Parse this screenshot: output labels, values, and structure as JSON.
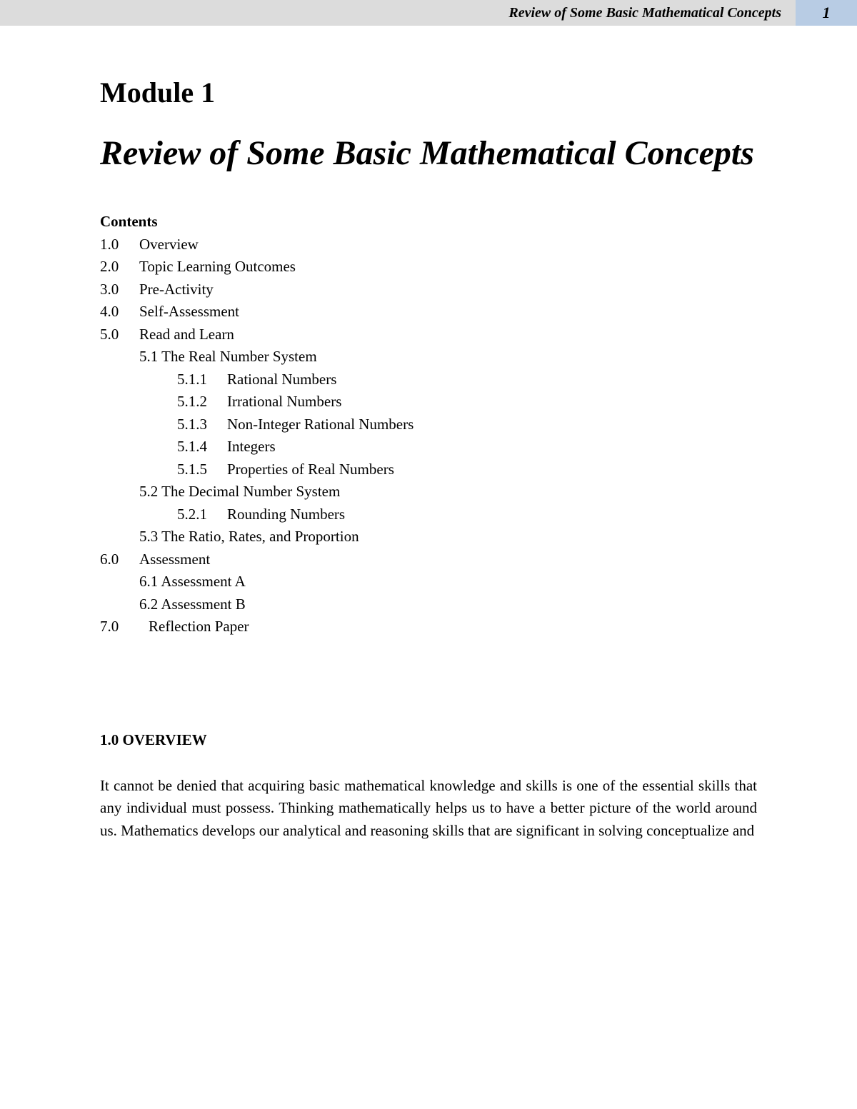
{
  "header": {
    "running_title": "Review of Some Basic Mathematical Concepts",
    "page_number": "1",
    "header_left_bg": "#dcdcdc",
    "header_right_bg": "#b8cce4"
  },
  "module_label": "Module 1",
  "title": "Review of Some Basic Mathematical Concepts",
  "contents_label": "Contents",
  "toc": {
    "items": [
      {
        "num": "1.0",
        "label": "Overview"
      },
      {
        "num": "2.0",
        "label": "Topic Learning Outcomes"
      },
      {
        "num": "3.0",
        "label": "Pre-Activity"
      },
      {
        "num": "4.0",
        "label": "Self-Assessment"
      },
      {
        "num": "5.0",
        "label": "Read and Learn"
      }
    ],
    "sub5": [
      {
        "label": "5.1 The Real Number System"
      }
    ],
    "sub5_1": [
      {
        "num": "5.1.1",
        "label": "Rational Numbers"
      },
      {
        "num": "5.1.2",
        "label": "Irrational Numbers"
      },
      {
        "num": "5.1.3",
        "label": "Non-Integer Rational Numbers"
      },
      {
        "num": "5.1.4",
        "label": "Integers"
      },
      {
        "num": "5.1.5",
        "label": "Properties of Real Numbers"
      }
    ],
    "sub5b": [
      {
        "label": "5.2 The Decimal Number System"
      }
    ],
    "sub5_2": [
      {
        "num": "5.2.1",
        "label": "Rounding Numbers"
      }
    ],
    "sub5c": [
      {
        "label": "5.3 The Ratio, Rates, and Proportion"
      }
    ],
    "item6": {
      "num": "6.0",
      "label": "Assessment"
    },
    "sub6": [
      {
        "label": "6.1 Assessment A"
      },
      {
        "label": "6.2 Assessment B"
      }
    ],
    "item7": {
      "num": "7.0",
      "label": "Reflection Paper"
    }
  },
  "section_heading": "1.0  OVERVIEW",
  "body_paragraph": "It cannot be denied that acquiring basic mathematical knowledge and skills is one of the essential skills that any individual must possess. Thinking mathematically helps us to have a better picture of the world around us. Mathematics develops our analytical and reasoning skills that are significant in solving conceptualize and"
}
